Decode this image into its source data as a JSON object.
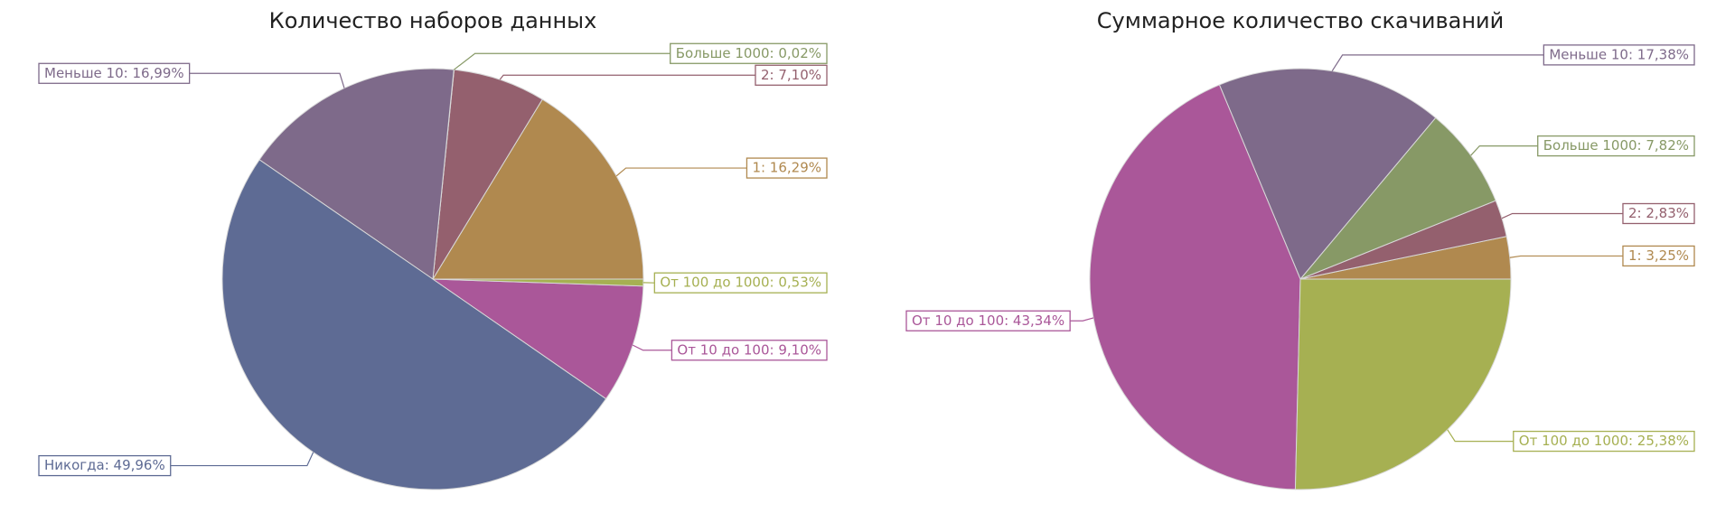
{
  "chart_data": [
    {
      "type": "pie",
      "title": "Количество наборов данных",
      "values": [
        16.29,
        7.1,
        0.02,
        16.99,
        49.96,
        9.1,
        0.53
      ],
      "value_labels": [
        "1: 16,29%",
        "2: 7,10%",
        "Больше 1000: 0,02%",
        "Меньше 10: 16,99%",
        "Никогда: 49,96%",
        "От 10 до 100: 9,10%",
        "От 100 до 1000: 0,53%"
      ],
      "colors": [
        "#b0894f",
        "#94606e",
        "#879966",
        "#7e6a8a",
        "#5e6b94",
        "#aa5799",
        "#a6b052"
      ]
    },
    {
      "type": "pie",
      "title": "Суммарное количество скачиваний",
      "values": [
        3.25,
        2.83,
        7.82,
        17.38,
        43.34,
        25.38
      ],
      "value_labels": [
        "1: 3,25%",
        "2: 2,83%",
        "Больше 1000: 7,82%",
        "Меньше 10: 17,38%",
        "От 10 до 100: 43,34%",
        "От 100 до 1000: 25,38%"
      ],
      "colors": [
        "#b0894f",
        "#94606e",
        "#879966",
        "#7e6a8a",
        "#aa5799",
        "#a6b052"
      ]
    }
  ]
}
